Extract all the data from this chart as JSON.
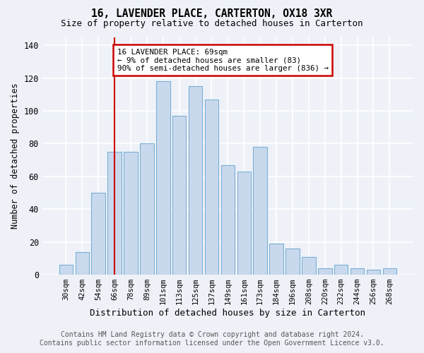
{
  "title": "16, LAVENDER PLACE, CARTERTON, OX18 3XR",
  "subtitle": "Size of property relative to detached houses in Carterton",
  "xlabel": "Distribution of detached houses by size in Carterton",
  "ylabel": "Number of detached properties",
  "categories": [
    "30sqm",
    "42sqm",
    "54sqm",
    "66sqm",
    "78sqm",
    "89sqm",
    "101sqm",
    "113sqm",
    "125sqm",
    "137sqm",
    "149sqm",
    "161sqm",
    "173sqm",
    "184sqm",
    "196sqm",
    "208sqm",
    "220sqm",
    "232sqm",
    "244sqm",
    "256sqm",
    "268sqm"
  ],
  "values": [
    6,
    14,
    50,
    75,
    75,
    80,
    118,
    97,
    115,
    107,
    67,
    63,
    78,
    19,
    16,
    11,
    4,
    6,
    4,
    3,
    4
  ],
  "bar_color": "#c9d9ed",
  "bar_edge_color": "#7bafd4",
  "annotation_title": "16 LAVENDER PLACE: 69sqm",
  "annotation_line1": "← 9% of detached houses are smaller (83)",
  "annotation_line2": "90% of semi-detached houses are larger (836) →",
  "annotation_box_color": "#ffffff",
  "annotation_box_edge": "#cc0000",
  "vline_color": "#cc0000",
  "footer_line1": "Contains HM Land Registry data © Crown copyright and database right 2024.",
  "footer_line2": "Contains public sector information licensed under the Open Government Licence v3.0.",
  "ylim": [
    0,
    145
  ],
  "yticks": [
    0,
    20,
    40,
    60,
    80,
    100,
    120,
    140
  ],
  "background_color": "#eef2f8",
  "plot_background": "#eef2f8",
  "grid_color": "#ffffff",
  "vline_x_index": 3.0
}
